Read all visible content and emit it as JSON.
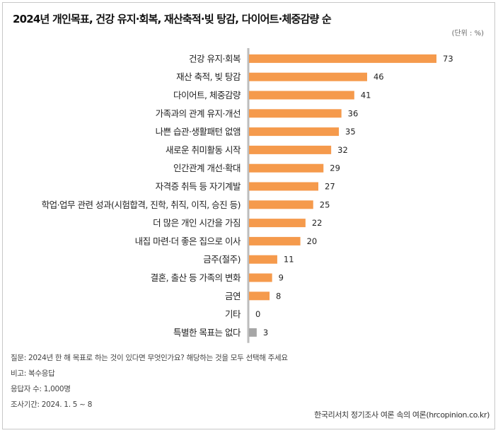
{
  "chart_data": {
    "type": "bar",
    "orientation": "horizontal",
    "title": "2024년 개인목표, 건강 유지·회복, 재산축적·빚 탕감, 다이어트·체중감량 순",
    "unit_label": "(단위 : %)",
    "categories": [
      "건강 유지·회복",
      "재산 축적, 빚 탕감",
      "다이어트, 체중감량",
      "가족과의 관계 유지·개선",
      "나쁜 습관·생활패턴 없앰",
      "새로운 취미활동 시작",
      "인간관계 개선·확대",
      "자격증 취득 등 자기계발",
      "학업·업무 관련 성과(시험합격, 진학, 취직, 이직, 승진 등)",
      "더 많은 개인 시간을 가짐",
      "내집 마련·더 좋은 집으로 이사",
      "금주(절주)",
      "결혼, 출산 등 가족의 변화",
      "금연",
      "기타",
      "특별한 목표는 없다"
    ],
    "values": [
      73,
      46,
      41,
      36,
      35,
      32,
      29,
      27,
      25,
      22,
      20,
      11,
      9,
      8,
      0,
      3
    ],
    "colors": {
      "main": "#f59a4c",
      "none": "#a6a6a6",
      "axis": "#bdbdbd"
    },
    "xlim": [
      0,
      80
    ]
  },
  "footer": {
    "question": "질문:  2024년 한 해 목표로 하는 것이 있다면 무엇인가요? 해당하는 것을 모두 선택해 주세요",
    "note": "비고: 복수응답",
    "respondents": "응답자 수: 1,000명",
    "period": "조사기간: 2024. 1. 5 ~ 8",
    "source": "한국리서치 정기조사 여론 속의 여론(hrcopinion.co.kr)"
  }
}
